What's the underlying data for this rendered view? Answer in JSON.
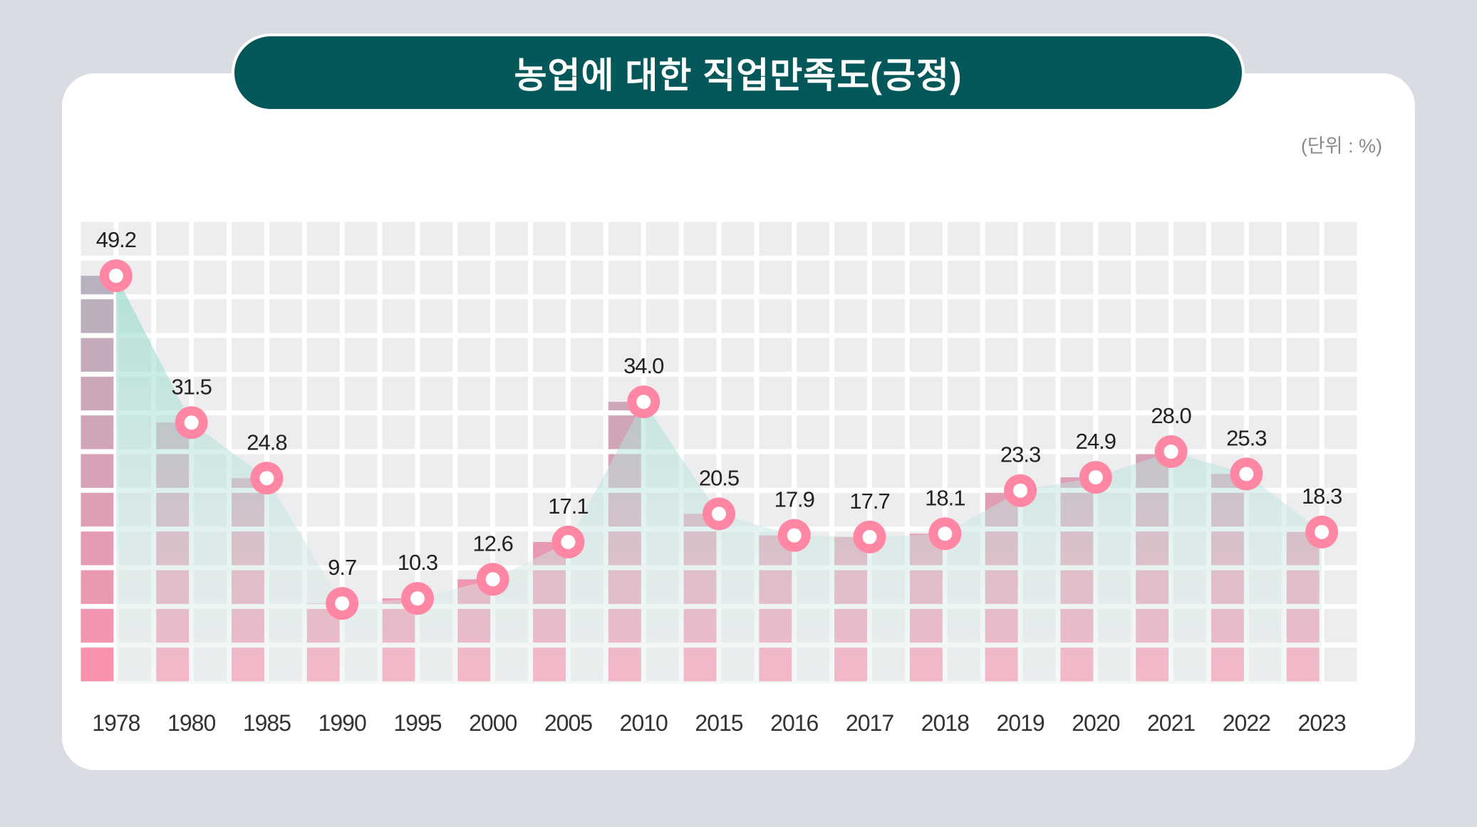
{
  "title": "농업에 대한 직업만족도(긍정)",
  "unit": "(단위 : %)",
  "colors": {
    "background": "#d9dce3",
    "card": "#ffffff",
    "title_bg": "#04585a",
    "grid_cell": "#ededef",
    "bar_top": "#b7b1c0",
    "bar_bottom": "#ff8fab",
    "area_top": "#8fd9c9",
    "area_bottom": "#e9eeef",
    "marker_ring": "#ff87a4",
    "label_text": "#222222"
  },
  "chart_data": {
    "type": "bar",
    "categories": [
      "1978",
      "1980",
      "1985",
      "1990",
      "1995",
      "2000",
      "2005",
      "2010",
      "2015",
      "2016",
      "2017",
      "2018",
      "2019",
      "2020",
      "2021",
      "2022",
      "2023"
    ],
    "values": [
      49.2,
      31.5,
      24.8,
      9.7,
      10.3,
      12.6,
      17.1,
      34.0,
      20.5,
      17.9,
      17.7,
      18.1,
      23.3,
      24.9,
      28.0,
      25.3,
      18.3
    ],
    "value_labels": [
      "49.2",
      "31.5",
      "24.8",
      "9.7",
      "10.3",
      "12.6",
      "17.1",
      "34.0",
      "20.5",
      "17.9",
      "17.7",
      "18.1",
      "23.3",
      "24.9",
      "28.0",
      "25.3",
      "18.3"
    ],
    "overlay": "area",
    "xlabel": "",
    "ylabel": "",
    "ylim": [
      0,
      56
    ],
    "grid": true,
    "legend": "none"
  }
}
